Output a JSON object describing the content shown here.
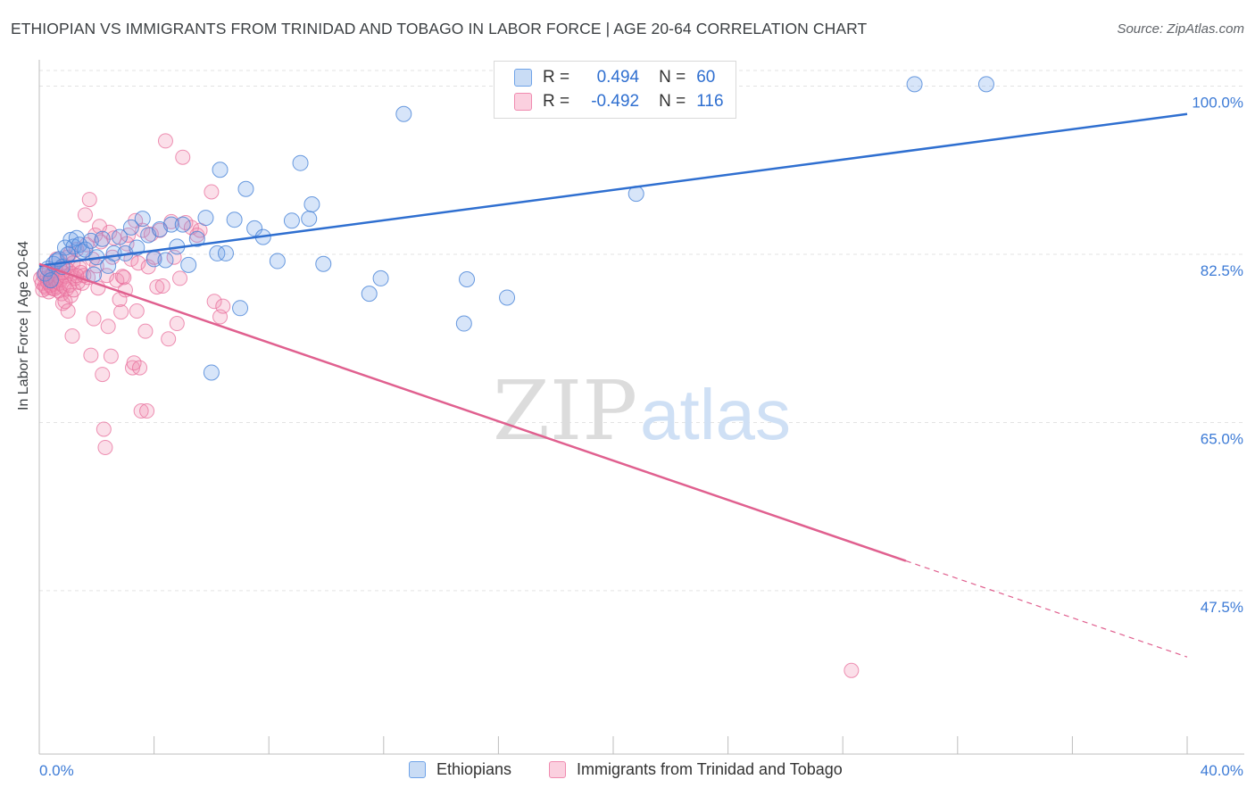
{
  "header": {
    "title": "ETHIOPIAN VS IMMIGRANTS FROM TRINIDAD AND TOBAGO IN LABOR FORCE | AGE 20-64 CORRELATION CHART",
    "source": "Source: ZipAtlas.com"
  },
  "watermark": {
    "zip": "ZIP",
    "atlas": "atlas"
  },
  "legend": {
    "r_label": "R =",
    "n_label": "N =",
    "rows": [
      {
        "r": "0.494",
        "n": "60"
      },
      {
        "r": "-0.492",
        "n": "116"
      }
    ]
  },
  "chart_data": {
    "type": "scatter",
    "title": "ETHIOPIAN VS IMMIGRANTS FROM TRINIDAD AND TOBAGO IN LABOR FORCE | AGE 20-64 CORRELATION CHART",
    "xlabel": "",
    "ylabel": "In Labor Force | Age 20-64",
    "xlim": [
      0,
      40
    ],
    "ylim": [
      30.5,
      102
    ],
    "x_tick_labels": [
      "0.0%",
      "40.0%"
    ],
    "y_ticks": [
      47.5,
      65.0,
      82.5,
      100.0
    ],
    "y_tick_labels": [
      "47.5%",
      "65.0%",
      "82.5%",
      "100.0%"
    ],
    "grid": true,
    "legend_position": "bottom",
    "colors": {
      "ethiopians": "#6fa3e8",
      "trinidad": "#f08bb0",
      "ethiopians_line": "#2f6fd0",
      "trinidad_line": "#e0608f"
    },
    "series": [
      {
        "name": "Ethiopians",
        "r": 0.494,
        "n": 60,
        "trend": {
          "x0": 0.0,
          "y0": 81.3,
          "x1": 40.0,
          "y1": 97.1
        },
        "points": [
          [
            0.2,
            80.5
          ],
          [
            0.3,
            81.0
          ],
          [
            0.4,
            79.8
          ],
          [
            0.5,
            81.5
          ],
          [
            0.6,
            81.8
          ],
          [
            0.7,
            82.0
          ],
          [
            0.8,
            81.2
          ],
          [
            0.9,
            83.2
          ],
          [
            1.0,
            82.5
          ],
          [
            1.1,
            84.0
          ],
          [
            1.2,
            83.3
          ],
          [
            1.3,
            84.2
          ],
          [
            1.4,
            83.5
          ],
          [
            1.5,
            82.8
          ],
          [
            1.6,
            83.0
          ],
          [
            1.8,
            83.9
          ],
          [
            2.0,
            82.2
          ],
          [
            2.2,
            84.1
          ],
          [
            2.4,
            81.3
          ],
          [
            2.6,
            82.6
          ],
          [
            2.8,
            84.3
          ],
          [
            3.0,
            82.6
          ],
          [
            3.2,
            85.3
          ],
          [
            3.4,
            83.2
          ],
          [
            3.6,
            86.2
          ],
          [
            3.8,
            84.5
          ],
          [
            4.0,
            82.0
          ],
          [
            4.2,
            85.1
          ],
          [
            4.4,
            81.9
          ],
          [
            4.6,
            85.6
          ],
          [
            4.8,
            83.3
          ],
          [
            5.0,
            85.6
          ],
          [
            5.2,
            81.4
          ],
          [
            5.5,
            84.1
          ],
          [
            5.8,
            86.3
          ],
          [
            6.0,
            70.2
          ],
          [
            6.2,
            82.6
          ],
          [
            6.3,
            91.3
          ],
          [
            6.5,
            82.6
          ],
          [
            6.8,
            86.1
          ],
          [
            7.0,
            76.9
          ],
          [
            7.2,
            89.3
          ],
          [
            7.5,
            85.2
          ],
          [
            7.8,
            84.3
          ],
          [
            8.3,
            81.8
          ],
          [
            8.8,
            86.0
          ],
          [
            9.1,
            92.0
          ],
          [
            9.4,
            86.2
          ],
          [
            9.5,
            87.7
          ],
          [
            9.9,
            81.5
          ],
          [
            11.5,
            78.4
          ],
          [
            11.9,
            80.0
          ],
          [
            12.7,
            97.1
          ],
          [
            14.8,
            75.3
          ],
          [
            14.9,
            79.9
          ],
          [
            16.3,
            78.0
          ],
          [
            20.8,
            88.8
          ],
          [
            30.5,
            100.2
          ],
          [
            33.0,
            100.2
          ],
          [
            1.9,
            80.4
          ]
        ]
      },
      {
        "name": "Immigrants from Trinidad and Tobago",
        "r": -0.492,
        "n": 116,
        "trend": {
          "x0": 0.0,
          "y0": 81.5,
          "x1": 30.2,
          "y1": 50.6
        },
        "trend_dashed": {
          "x0": 30.2,
          "y0": 50.6,
          "x1": 40.0,
          "y1": 40.6
        },
        "points": [
          [
            0.05,
            80.0
          ],
          [
            0.1,
            79.5
          ],
          [
            0.12,
            78.8
          ],
          [
            0.15,
            80.3
          ],
          [
            0.2,
            79.2
          ],
          [
            0.22,
            80.5
          ],
          [
            0.25,
            79.0
          ],
          [
            0.28,
            80.1
          ],
          [
            0.3,
            79.6
          ],
          [
            0.33,
            78.6
          ],
          [
            0.35,
            80.8
          ],
          [
            0.38,
            79.3
          ],
          [
            0.4,
            80.2
          ],
          [
            0.42,
            79.8
          ],
          [
            0.45,
            79.0
          ],
          [
            0.48,
            80.5
          ],
          [
            0.5,
            79.4
          ],
          [
            0.52,
            78.9
          ],
          [
            0.55,
            80.0
          ],
          [
            0.58,
            79.7
          ],
          [
            0.6,
            80.7
          ],
          [
            0.62,
            79.1
          ],
          [
            0.65,
            80.3
          ],
          [
            0.68,
            78.7
          ],
          [
            0.7,
            79.5
          ],
          [
            0.72,
            81.0
          ],
          [
            0.75,
            79.9
          ],
          [
            0.78,
            78.4
          ],
          [
            0.8,
            80.6
          ],
          [
            0.82,
            77.4
          ],
          [
            0.85,
            79.2
          ],
          [
            0.88,
            81.3
          ],
          [
            0.9,
            77.6
          ],
          [
            0.92,
            80.2
          ],
          [
            0.95,
            78.9
          ],
          [
            0.98,
            82.2
          ],
          [
            1.0,
            76.6
          ],
          [
            1.02,
            80.8
          ],
          [
            1.05,
            79.3
          ],
          [
            1.08,
            82.6
          ],
          [
            1.1,
            78.2
          ],
          [
            1.12,
            80.5
          ],
          [
            1.15,
            74.0
          ],
          [
            1.18,
            81.6
          ],
          [
            1.2,
            78.8
          ],
          [
            1.25,
            80.0
          ],
          [
            1.3,
            83.0
          ],
          [
            1.35,
            79.6
          ],
          [
            1.4,
            81.1
          ],
          [
            1.45,
            80.6
          ],
          [
            1.5,
            79.5
          ],
          [
            1.55,
            80.3
          ],
          [
            1.6,
            86.6
          ],
          [
            1.65,
            83.5
          ],
          [
            1.7,
            80.1
          ],
          [
            1.75,
            88.2
          ],
          [
            1.8,
            72.0
          ],
          [
            1.85,
            82.0
          ],
          [
            1.9,
            75.8
          ],
          [
            1.95,
            84.5
          ],
          [
            2.0,
            81.3
          ],
          [
            2.05,
            79.0
          ],
          [
            2.1,
            85.4
          ],
          [
            2.15,
            83.8
          ],
          [
            2.2,
            70.0
          ],
          [
            2.25,
            64.3
          ],
          [
            2.3,
            62.4
          ],
          [
            2.35,
            80.3
          ],
          [
            2.4,
            75.0
          ],
          [
            2.45,
            84.8
          ],
          [
            2.5,
            71.9
          ],
          [
            2.55,
            82.2
          ],
          [
            2.6,
            84.2
          ],
          [
            2.7,
            79.8
          ],
          [
            2.8,
            77.8
          ],
          [
            2.85,
            76.5
          ],
          [
            2.9,
            80.2
          ],
          [
            3.0,
            78.8
          ],
          [
            3.05,
            83.6
          ],
          [
            3.1,
            84.5
          ],
          [
            3.2,
            82.0
          ],
          [
            3.25,
            70.7
          ],
          [
            3.3,
            71.2
          ],
          [
            3.35,
            86.0
          ],
          [
            3.4,
            76.6
          ],
          [
            3.45,
            81.6
          ],
          [
            3.5,
            70.7
          ],
          [
            3.55,
            66.2
          ],
          [
            3.6,
            85.0
          ],
          [
            3.7,
            74.5
          ],
          [
            3.75,
            66.2
          ],
          [
            3.8,
            81.2
          ],
          [
            3.9,
            84.6
          ],
          [
            4.0,
            82.2
          ],
          [
            4.1,
            79.1
          ],
          [
            4.2,
            85.0
          ],
          [
            4.3,
            79.2
          ],
          [
            4.4,
            94.3
          ],
          [
            4.5,
            73.7
          ],
          [
            4.6,
            85.9
          ],
          [
            4.7,
            82.2
          ],
          [
            4.8,
            75.3
          ],
          [
            4.9,
            80.0
          ],
          [
            5.0,
            92.6
          ],
          [
            5.1,
            85.8
          ],
          [
            5.3,
            85.3
          ],
          [
            5.5,
            84.5
          ],
          [
            5.6,
            85.0
          ],
          [
            6.0,
            89.0
          ],
          [
            6.1,
            77.6
          ],
          [
            6.3,
            76.0
          ],
          [
            6.4,
            77.1
          ],
          [
            2.95,
            80.1
          ],
          [
            28.3,
            39.2
          ],
          [
            0.6,
            82.0
          ],
          [
            1.3,
            80.3
          ]
        ]
      }
    ]
  },
  "bottom_legend": {
    "ethiopians": "Ethiopians",
    "trinidad": "Immigrants from Trinidad and Tobago"
  }
}
